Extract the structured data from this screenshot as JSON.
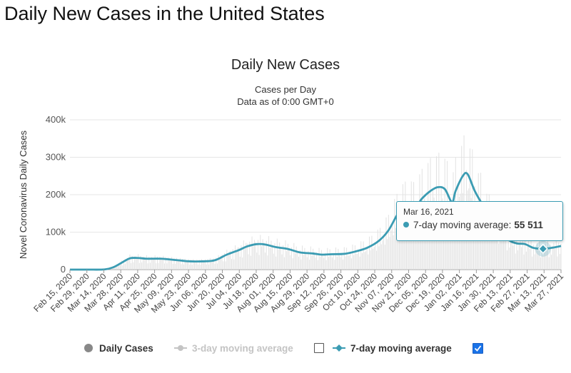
{
  "page_heading": "Daily New Cases in the United States",
  "colors": {
    "series": "#3b9cb3",
    "daily_bars": "#e2e2e2",
    "grid": "#e6e6e6",
    "checkbox": "#1a73e8"
  },
  "chart_data": {
    "type": "line",
    "title": "Daily New Cases",
    "subtitle": "Cases per Day",
    "subtitle2": "Data as of 0:00 GMT+0",
    "ylabel": "Novel Coronavirus Daily Cases",
    "xlabel": "",
    "ylim": [
      0,
      400000
    ],
    "yticks": [
      0,
      100000,
      200000,
      300000,
      400000
    ],
    "ytick_labels": [
      "0",
      "100k",
      "200k",
      "300k",
      "400k"
    ],
    "xlim": [
      "2020-02-15",
      "2021-03-31"
    ],
    "xtick_labels": [
      "Feb 15, 2020",
      "Feb 29, 2020",
      "Mar 14, 2020",
      "Mar 28, 2020",
      "Apr 11, 2020",
      "Apr 25, 2020",
      "May 09, 2020",
      "May 23, 2020",
      "Jun 06, 2020",
      "Jun 20, 2020",
      "Jul 04, 2020",
      "Jul 18, 2020",
      "Aug 01, 2020",
      "Aug 15, 2020",
      "Aug 29, 2020",
      "Sep 12, 2020",
      "Sep 26, 2020",
      "Oct 10, 2020",
      "Oct 24, 2020",
      "Nov 07, 2020",
      "Nov 21, 2020",
      "Dec 05, 2020",
      "Dec 19, 2020",
      "Jan 02, 2021",
      "Jan 16, 2021",
      "Jan 30, 2021",
      "Feb 13, 2021",
      "Feb 27, 2021",
      "Mar 13, 2021",
      "Mar 27, 2021"
    ],
    "grid": true,
    "legend_position": "bottom",
    "series": [
      {
        "name": "7-day moving average",
        "x": [
          "2020-02-15",
          "2020-03-01",
          "2020-03-15",
          "2020-03-22",
          "2020-03-29",
          "2020-04-05",
          "2020-04-12",
          "2020-04-19",
          "2020-05-01",
          "2020-05-15",
          "2020-05-25",
          "2020-06-05",
          "2020-06-15",
          "2020-06-25",
          "2020-07-05",
          "2020-07-12",
          "2020-07-20",
          "2020-07-27",
          "2020-08-05",
          "2020-08-15",
          "2020-08-25",
          "2020-09-05",
          "2020-09-12",
          "2020-09-20",
          "2020-10-01",
          "2020-10-10",
          "2020-10-20",
          "2020-10-30",
          "2020-11-07",
          "2020-11-15",
          "2020-11-22",
          "2020-11-29",
          "2020-12-05",
          "2020-12-12",
          "2020-12-18",
          "2020-12-24",
          "2020-12-30",
          "2021-01-02",
          "2021-01-08",
          "2021-01-12",
          "2021-01-18",
          "2021-01-25",
          "2021-02-01",
          "2021-02-08",
          "2021-02-15",
          "2021-02-22",
          "2021-03-01",
          "2021-03-08",
          "2021-03-16",
          "2021-03-23",
          "2021-03-31"
        ],
        "values": [
          0,
          0,
          500,
          6000,
          18000,
          30000,
          31000,
          29000,
          29000,
          25000,
          22000,
          22000,
          25000,
          40000,
          52000,
          62000,
          68000,
          67000,
          60000,
          55000,
          46000,
          43000,
          40000,
          41000,
          42000,
          48000,
          58000,
          77000,
          105000,
          150000,
          170000,
          165000,
          190000,
          210000,
          220000,
          215000,
          180000,
          210000,
          250000,
          255000,
          210000,
          170000,
          130000,
          110000,
          80000,
          70000,
          68000,
          58000,
          55511,
          58000,
          63000
        ]
      },
      {
        "name": "Daily Cases"
      },
      {
        "name": "3-day moving average"
      }
    ],
    "tooltip": {
      "date": "Mar 16, 2021",
      "series": "7-day moving average",
      "label": "7-day moving average:",
      "value_label": "55 511",
      "x": "2021-03-16",
      "y": 55511
    }
  },
  "legend": {
    "daily": "Daily Cases",
    "three_day": "3-day moving average",
    "seven_day": "7-day moving average",
    "three_day_checked": false,
    "seven_day_checked": true
  }
}
